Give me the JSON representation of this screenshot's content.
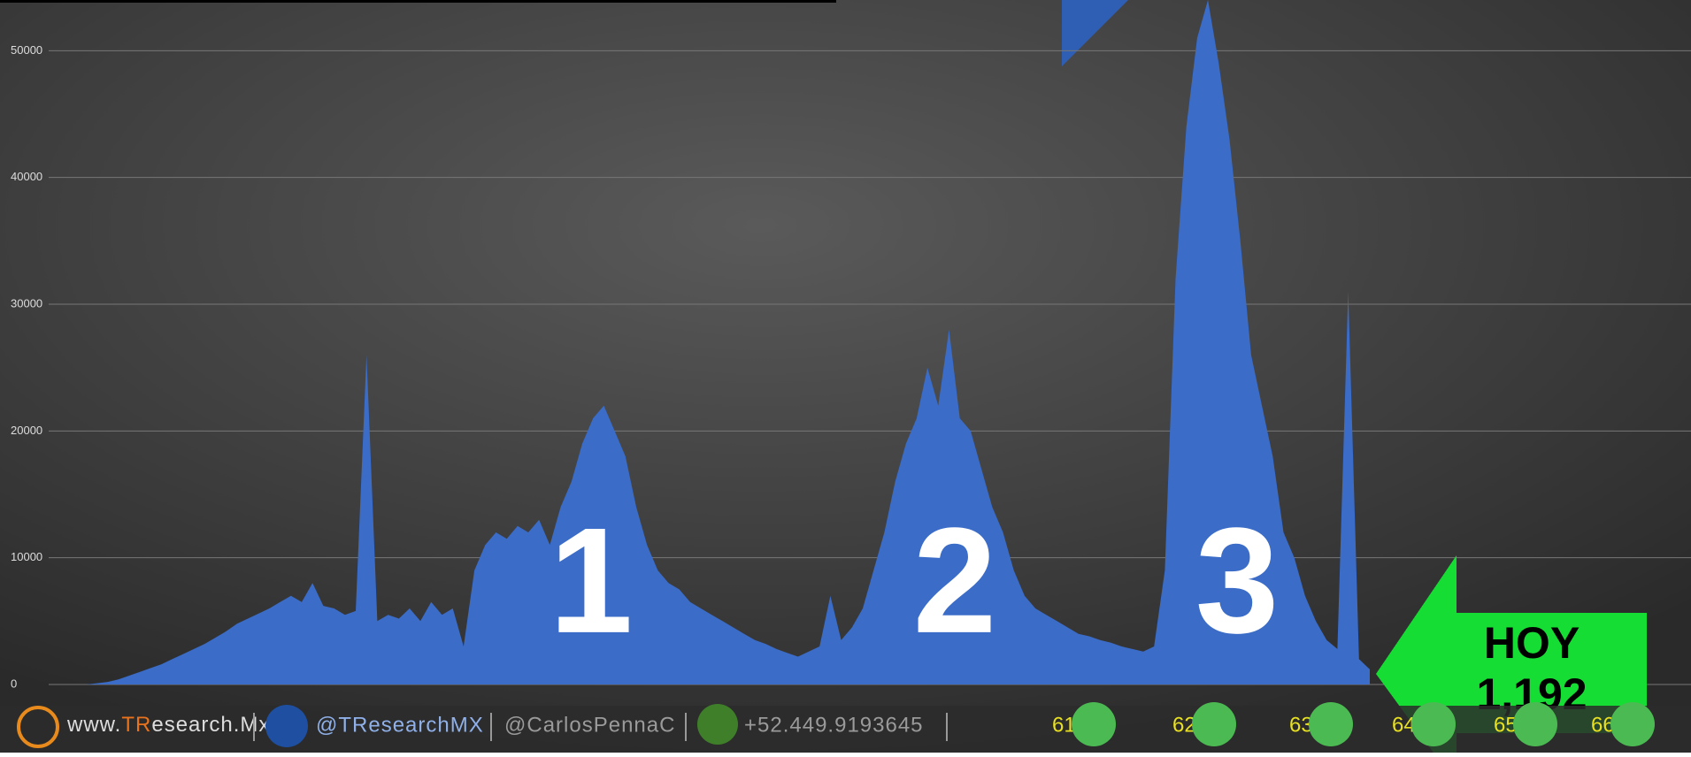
{
  "chart_data": {
    "type": "area",
    "color": "#3a6cc8",
    "values": [
      0,
      0,
      100,
      200,
      400,
      700,
      1000,
      1300,
      1600,
      2000,
      2400,
      2800,
      3200,
      3700,
      4200,
      4800,
      5200,
      5600,
      6000,
      6500,
      7000,
      6500,
      8000,
      6200,
      6000,
      5500,
      5800,
      26000,
      5000,
      5500,
      5200,
      6000,
      5000,
      6500,
      5500,
      6000,
      3000,
      9000,
      11000,
      12000,
      11500,
      12500,
      12000,
      13000,
      11000,
      14000,
      16000,
      19000,
      21000,
      22000,
      20000,
      18000,
      14000,
      11000,
      9000,
      8000,
      7500,
      6500,
      6000,
      5500,
      5000,
      4500,
      4000,
      3500,
      3200,
      2800,
      2500,
      2200,
      2600,
      3000,
      7000,
      3500,
      4500,
      6000,
      9000,
      12000,
      16000,
      19000,
      21000,
      25000,
      22000,
      28000,
      21000,
      20000,
      17000,
      14000,
      12000,
      9000,
      7000,
      6000,
      5500,
      5000,
      4500,
      4000,
      3800,
      3500,
      3300,
      3000,
      2800,
      2600,
      3000,
      9000,
      32000,
      44000,
      51000,
      54000,
      49000,
      43000,
      35000,
      26000,
      22000,
      18000,
      12000,
      10000,
      7000,
      5000,
      3500,
      2800,
      31000,
      2000,
      1192
    ],
    "ylim": [
      0,
      54000
    ],
    "yticks": [
      0,
      10000,
      20000,
      30000,
      40000,
      50000
    ],
    "grid": true,
    "annotations": [
      "1",
      "2",
      "3"
    ],
    "callout": [
      "HOY",
      "1,192"
    ]
  },
  "footer": {
    "site": [
      "www.",
      "TR",
      "esearch.Mx"
    ],
    "twitter": "@TResearchMX",
    "user": "@CarlosPennaC",
    "phone": "+52.449.9193645",
    "groups": [
      "61",
      "62",
      "63",
      "64",
      "65",
      "66"
    ]
  }
}
